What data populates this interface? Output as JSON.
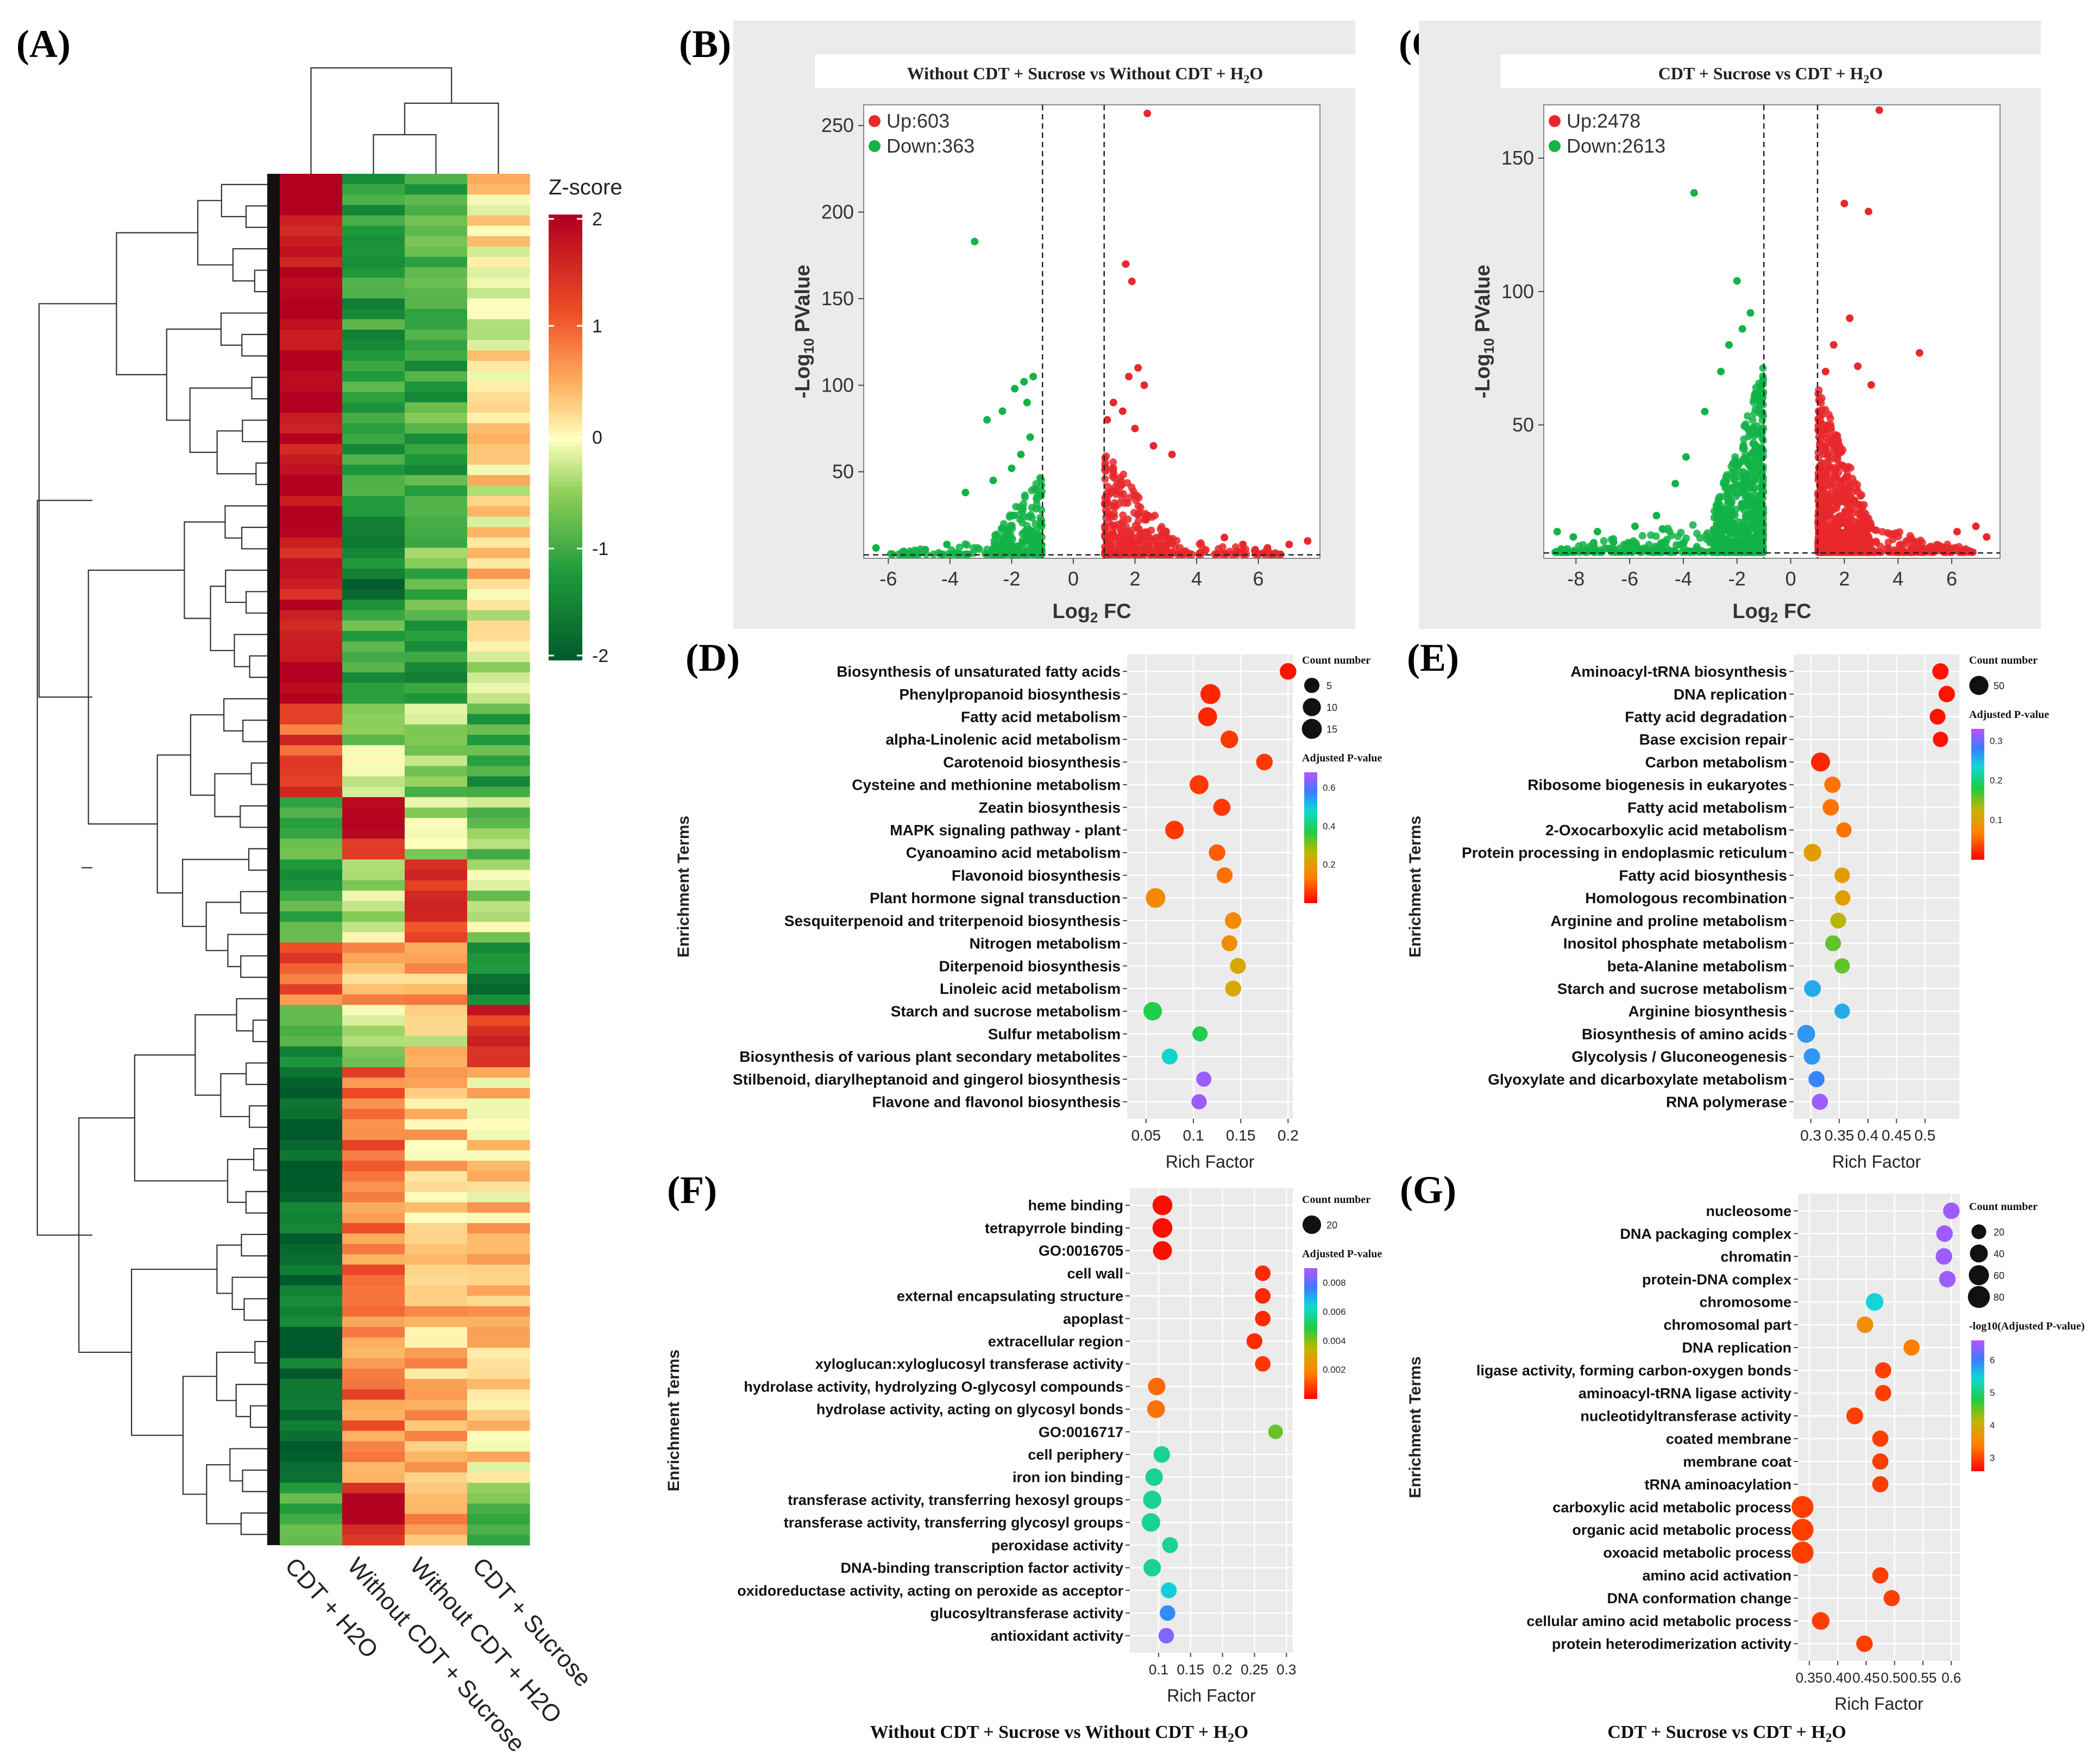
{
  "panels": {
    "A": "(A)",
    "B": "(B)",
    "C": "(C)",
    "D": "(D)",
    "E": "(E)",
    "F": "(F)",
    "G": "(G)"
  },
  "colors": {
    "up": "#e8282b",
    "down": "#12b347",
    "plot_bg": "#ebebeb",
    "grid": "#ffffff",
    "heat_high": "#b2001f",
    "heat_low": "#00592b"
  },
  "chart_data": [
    {
      "id": "A",
      "type": "heatmap",
      "legend_title": "Z-score",
      "legend_ticks": [
        "2",
        "1",
        "0",
        "-1",
        "-2"
      ],
      "value_range": [
        -2,
        2
      ],
      "columns": [
        "CDT + H2O",
        "Without CDT + Sucrose",
        "Without CDT + H2O",
        "CDT + Sucrose"
      ],
      "row_blocks": [
        {
          "rows": 34,
          "values": [
            1.9,
            -1.2,
            -1.0,
            0.1
          ]
        },
        {
          "rows": 8,
          "values": [
            1.8,
            -1.5,
            -0.8,
            0.3
          ]
        },
        {
          "rows": 9,
          "values": [
            1.9,
            -1.0,
            -1.2,
            -0.2
          ]
        },
        {
          "rows": 9,
          "values": [
            1.2,
            -0.4,
            -0.5,
            -1.1
          ]
        },
        {
          "rows": 6,
          "values": [
            -0.9,
            1.6,
            -0.3,
            -0.6
          ]
        },
        {
          "rows": 8,
          "values": [
            -1.0,
            -0.2,
            1.5,
            -0.4
          ]
        },
        {
          "rows": 6,
          "values": [
            1.0,
            0.4,
            0.6,
            -1.4
          ]
        },
        {
          "rows": 6,
          "values": [
            -1.2,
            -0.3,
            0.1,
            1.5
          ]
        },
        {
          "rows": 40,
          "values": [
            -1.8,
            0.9,
            0.4,
            0.3
          ]
        },
        {
          "rows": 6,
          "values": [
            -0.8,
            1.8,
            0.5,
            -0.9
          ]
        }
      ]
    },
    {
      "id": "B",
      "type": "scatter",
      "title": "Without CDT + Sucrose vs Without CDT + H",
      "title_sub": "2",
      "title_end": "O",
      "xlabel": "Log",
      "xlabel_sub": "2",
      "xlabel_end": " FC",
      "ylabel": "-Log",
      "ylabel_sub": "10",
      "ylabel_end": " PValue",
      "xlim": [
        -6.8,
        8.0
      ],
      "ylim": [
        0,
        262
      ],
      "xticks": [
        -6,
        -4,
        -2,
        0,
        2,
        4,
        6
      ],
      "yticks": [
        50,
        100,
        150,
        200,
        250
      ],
      "vlines": [
        -1,
        1
      ],
      "hline": 2,
      "legend": [
        {
          "label": "Up:603",
          "color": "up"
        },
        {
          "label": "Down:363",
          "color": "down"
        }
      ],
      "up_points": [
        [
          2.4,
          257
        ],
        [
          1.7,
          170
        ],
        [
          1.9,
          160
        ],
        [
          2.1,
          110
        ],
        [
          1.8,
          105
        ],
        [
          2.3,
          100
        ],
        [
          1.3,
          90
        ],
        [
          1.6,
          85
        ],
        [
          2.6,
          65
        ],
        [
          3.2,
          60
        ],
        [
          2.0,
          75
        ],
        [
          1.1,
          80
        ],
        [
          4.9,
          12
        ],
        [
          5.5,
          8
        ],
        [
          7.0,
          8
        ],
        [
          7.6,
          10
        ],
        [
          6.3,
          6
        ],
        [
          5.9,
          5
        ]
      ],
      "down_points": [
        [
          -3.2,
          183
        ],
        [
          -1.3,
          105
        ],
        [
          -1.6,
          102
        ],
        [
          -1.9,
          98
        ],
        [
          -1.5,
          90
        ],
        [
          -2.3,
          85
        ],
        [
          -2.8,
          80
        ],
        [
          -1.4,
          70
        ],
        [
          -1.7,
          60
        ],
        [
          -2.0,
          52
        ],
        [
          -2.6,
          45
        ],
        [
          -3.5,
          38
        ],
        [
          -4.1,
          8
        ],
        [
          -4.8,
          5
        ],
        [
          -5.5,
          4
        ],
        [
          -6.4,
          6
        ],
        [
          -3.8,
          3
        ]
      ],
      "up_cloud": {
        "x_start": 1.02,
        "x_spread": 2.2,
        "x_tail": 6.8,
        "y_max": 60,
        "n": 420
      },
      "down_cloud": {
        "x_start": -1.02,
        "x_spread": 1.6,
        "x_tail": -6.0,
        "y_max": 48,
        "n": 260
      }
    },
    {
      "id": "C",
      "type": "scatter",
      "title": "CDT + Sucrose vs CDT + H",
      "title_sub": "2",
      "title_end": "O",
      "xlabel": "Log",
      "xlabel_sub": "2",
      "xlabel_end": " FC",
      "ylabel": "-Log",
      "ylabel_sub": "10",
      "ylabel_end": " PValue",
      "xlim": [
        -9.2,
        7.8
      ],
      "ylim": [
        0,
        170
      ],
      "xticks": [
        -8,
        -6,
        -4,
        -2,
        0,
        2,
        4,
        6
      ],
      "yticks": [
        50,
        100,
        150
      ],
      "vlines": [
        -1,
        1
      ],
      "hline": 2,
      "legend": [
        {
          "label": "Up:2478",
          "color": "up"
        },
        {
          "label": "Down:2613",
          "color": "down"
        }
      ],
      "up_points": [
        [
          3.3,
          168
        ],
        [
          2.0,
          133
        ],
        [
          2.9,
          130
        ],
        [
          4.8,
          77
        ],
        [
          2.2,
          90
        ],
        [
          1.6,
          80
        ],
        [
          2.5,
          72
        ],
        [
          3.0,
          65
        ],
        [
          1.3,
          70
        ],
        [
          6.9,
          12
        ],
        [
          7.3,
          8
        ],
        [
          6.2,
          10
        ]
      ],
      "down_points": [
        [
          -3.6,
          137
        ],
        [
          -2.0,
          104
        ],
        [
          -1.5,
          92
        ],
        [
          -1.8,
          86
        ],
        [
          -2.3,
          80
        ],
        [
          -2.6,
          70
        ],
        [
          -3.2,
          55
        ],
        [
          -3.9,
          38
        ],
        [
          -4.3,
          28
        ],
        [
          -5.0,
          16
        ],
        [
          -5.8,
          12
        ],
        [
          -7.2,
          10
        ],
        [
          -8.1,
          8
        ],
        [
          -8.7,
          10
        ],
        [
          -6.6,
          6
        ]
      ],
      "up_cloud": {
        "x_start": 1.02,
        "x_spread": 2.0,
        "x_tail": 6.8,
        "y_max": 62,
        "n": 900
      },
      "down_cloud": {
        "x_start": -1.02,
        "x_spread": 1.9,
        "x_tail": -8.8,
        "y_max": 70,
        "n": 900
      }
    },
    {
      "id": "D",
      "type": "scatter",
      "ylabel": "Enrichment Terms",
      "xlabel": "Rich Factor",
      "xlim": [
        0.03,
        0.205
      ],
      "xticks": [
        0.05,
        0.1,
        0.15,
        0.2
      ],
      "xtick_labels": [
        "0.05",
        "0.1",
        "0.15",
        "0.2"
      ],
      "size_title": "Count number",
      "size_legend": [
        5,
        10,
        15
      ],
      "size_range": [
        3,
        17
      ],
      "color_title": "Adjusted P-value",
      "color_ticks": [
        0.6,
        0.4,
        0.2
      ],
      "color_range": [
        0.0,
        0.68
      ],
      "terms": [
        "Biosynthesis of unsaturated fatty acids",
        "Phenylpropanoid biosynthesis",
        "Fatty acid metabolism",
        "alpha-Linolenic acid metabolism",
        "Carotenoid biosynthesis",
        "Cysteine and methionine metabolism",
        "Zeatin biosynthesis",
        "MAPK signaling pathway - plant",
        "Cyanoamino acid metabolism",
        "Flavonoid biosynthesis",
        "Plant hormone signal transduction",
        "Sesquiterpenoid and triterpenoid biosynthesis",
        "Nitrogen metabolism",
        "Diterpenoid biosynthesis",
        "Linoleic acid metabolism",
        "Starch and sucrose metabolism",
        "Sulfur metabolism",
        "Biosynthesis of various plant secondary metabolites",
        "Stilbenoid, diarylheptanoid and gingerol biosynthesis",
        "Flavone and flavonol biosynthesis"
      ],
      "x": [
        0.2,
        0.118,
        0.115,
        0.138,
        0.175,
        0.106,
        0.13,
        0.08,
        0.125,
        0.133,
        0.06,
        0.142,
        0.138,
        0.147,
        0.142,
        0.057,
        0.107,
        0.075,
        0.111,
        0.106
      ],
      "count": [
        7,
        15,
        12,
        9,
        7,
        12,
        8,
        11,
        7,
        6,
        14,
        7,
        6,
        6,
        6,
        11,
        5,
        6,
        5,
        5
      ],
      "padj": [
        0.02,
        0.04,
        0.04,
        0.06,
        0.06,
        0.06,
        0.06,
        0.06,
        0.1,
        0.12,
        0.16,
        0.16,
        0.17,
        0.23,
        0.23,
        0.38,
        0.38,
        0.48,
        0.66,
        0.66
      ]
    },
    {
      "id": "E",
      "type": "scatter",
      "ylabel": "Enrichment Terms",
      "xlabel": "Rich Factor",
      "xlim": [
        0.27,
        0.56
      ],
      "xticks": [
        0.3,
        0.35,
        0.4,
        0.45,
        0.5
      ],
      "xtick_labels": [
        "0.3",
        "0.35",
        "0.4",
        "0.45",
        "0.5"
      ],
      "size_title": "Count number",
      "size_legend": [
        50
      ],
      "size_range": [
        5,
        70
      ],
      "color_title": "Adjusted P-value",
      "color_ticks": [
        0.3,
        0.2,
        0.1
      ],
      "color_range": [
        0.0,
        0.33
      ],
      "terms": [
        "Aminoacyl-tRNA biosynthesis",
        "DNA replication",
        "Fatty acid degradation",
        "Base excision repair",
        "Carbon metabolism",
        "Ribosome biogenesis in eukaryotes",
        "Fatty acid metabolism",
        "2-Oxocarboxylic acid metabolism",
        "Protein processing in endoplasmic reticulum",
        "Fatty acid biosynthesis",
        "Homologous recombination",
        "Arginine and proline metabolism",
        "Inositol phosphate metabolism",
        "beta-Alanine metabolism",
        "Starch and sucrose metabolism",
        "Arginine biosynthesis",
        "Biosynthesis of amino acids",
        "Glycolysis / Gluconeogenesis",
        "Glyoxylate and dicarboxylate metabolism",
        "RNA polymerase"
      ],
      "x": [
        0.527,
        0.538,
        0.522,
        0.527,
        0.317,
        0.338,
        0.335,
        0.358,
        0.303,
        0.355,
        0.356,
        0.348,
        0.339,
        0.355,
        0.303,
        0.355,
        0.292,
        0.302,
        0.31,
        0.316
      ],
      "count": [
        22,
        22,
        18,
        15,
        48,
        22,
        22,
        15,
        32,
        16,
        15,
        18,
        18,
        15,
        25,
        15,
        35,
        22,
        20,
        20
      ],
      "padj": [
        0.01,
        0.01,
        0.01,
        0.01,
        0.02,
        0.06,
        0.06,
        0.06,
        0.1,
        0.1,
        0.1,
        0.13,
        0.16,
        0.16,
        0.26,
        0.26,
        0.27,
        0.27,
        0.28,
        0.32
      ]
    },
    {
      "id": "F",
      "type": "scatter",
      "ylabel": "Enrichment Terms",
      "xlabel": "Rich Factor",
      "xlim": [
        0.055,
        0.31
      ],
      "xticks": [
        0.1,
        0.15,
        0.2,
        0.25,
        0.3
      ],
      "xtick_labels": [
        "0.1",
        "0.15",
        "0.2",
        "0.25",
        "0.3"
      ],
      "size_title": "Count number",
      "size_legend": [
        20
      ],
      "size_range": [
        4,
        30
      ],
      "color_title": "Adjusted P-value",
      "color_ticks": [
        0.008,
        0.006,
        0.004,
        0.002
      ],
      "color_range": [
        0.0,
        0.009
      ],
      "footer": "Without CDT + Sucrose vs Without CDT + H",
      "footer_sub": "2",
      "footer_end": "O",
      "terms": [
        "heme binding",
        "tetrapyrrole binding",
        "GO:0016705",
        "cell wall",
        "external encapsulating structure",
        "apoplast",
        "extracellular region",
        "xyloglucan:xyloglucosyl transferase activity",
        "hydrolase activity, hydrolyzing O-glycosyl compounds",
        "hydrolase activity, acting on glycosyl bonds",
        "GO:0016717",
        "cell periphery",
        "iron ion binding",
        "transferase activity, transferring hexosyl groups",
        "transferase activity, transferring glycosyl groups",
        "peroxidase activity",
        "DNA-binding transcription factor activity",
        "oxidoreductase activity, acting on peroxide as acceptor",
        "glucosyltransferase activity",
        "antioxidant activity"
      ],
      "x": [
        0.106,
        0.106,
        0.106,
        0.263,
        0.263,
        0.263,
        0.25,
        0.263,
        0.097,
        0.096,
        0.283,
        0.105,
        0.093,
        0.09,
        0.088,
        0.118,
        0.09,
        0.116,
        0.114,
        0.112
      ],
      "count": [
        26,
        26,
        22,
        10,
        10,
        10,
        11,
        10,
        16,
        17,
        8,
        13,
        16,
        19,
        20,
        11,
        16,
        11,
        10,
        10
      ],
      "padj": [
        0.0002,
        0.0002,
        0.0002,
        0.0006,
        0.0006,
        0.0006,
        0.0006,
        0.0008,
        0.0015,
        0.0016,
        0.0043,
        0.0058,
        0.0058,
        0.0058,
        0.0058,
        0.0058,
        0.0058,
        0.0066,
        0.0075,
        0.0085
      ]
    },
    {
      "id": "G",
      "type": "scatter",
      "ylabel": "Enrichment Terms",
      "xlabel": "Rich Factor",
      "xlim": [
        0.33,
        0.615
      ],
      "xticks": [
        0.35,
        0.4,
        0.45,
        0.5,
        0.55,
        0.6
      ],
      "xtick_labels": [
        "0.35",
        "0.40",
        "0.45",
        "0.50",
        "0.55",
        "0.6"
      ],
      "size_title": "Count number",
      "size_legend": [
        20,
        40,
        60,
        80
      ],
      "size_range": [
        8,
        90
      ],
      "color_title": "-log10(Adjusted P-value)",
      "color_ticks": [
        6,
        5,
        4,
        3
      ],
      "color_range": [
        2.6,
        6.6
      ],
      "footer": "CDT + Sucrose vs CDT + H",
      "footer_sub": "2",
      "footer_end": "O",
      "terms": [
        "nucleosome",
        "DNA packaging complex",
        "chromatin",
        "protein-DNA complex",
        "chromosome",
        "chromosomal part",
        "DNA replication",
        "ligase activity, forming carbon-oxygen bonds",
        "aminoacyl-tRNA ligase activity",
        "nucleotidyltransferase activity",
        "coated membrane",
        "membrane coat",
        "tRNA aminoacylation",
        "carboxylic acid metabolic process",
        "organic acid metabolic process",
        "oxoacid metabolic process",
        "amino acid activation",
        "DNA conformation change",
        "cellular amino acid metabolic process",
        "protein heterodimerization activity"
      ],
      "x": [
        0.6,
        0.588,
        0.587,
        0.593,
        0.465,
        0.448,
        0.53,
        0.48,
        0.48,
        0.43,
        0.475,
        0.475,
        0.475,
        0.338,
        0.338,
        0.338,
        0.475,
        0.495,
        0.37,
        0.447
      ],
      "count": [
        30,
        30,
        30,
        30,
        38,
        30,
        28,
        28,
        28,
        32,
        28,
        28,
        28,
        80,
        80,
        80,
        28,
        28,
        38,
        30
      ],
      "padj": [
        6.5,
        6.5,
        6.5,
        6.5,
        5.5,
        3.6,
        3.4,
        3.0,
        3.0,
        3.0,
        3.0,
        3.0,
        3.0,
        3.0,
        3.0,
        3.0,
        3.0,
        3.0,
        3.0,
        3.0
      ]
    }
  ]
}
